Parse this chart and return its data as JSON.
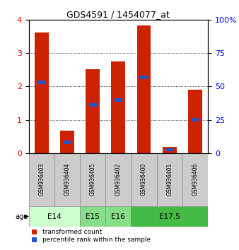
{
  "title": "GDS4591 / 1454077_at",
  "samples": [
    "GSM936403",
    "GSM936404",
    "GSM936405",
    "GSM936402",
    "GSM936400",
    "GSM936401",
    "GSM936406"
  ],
  "red_values": [
    3.62,
    0.68,
    2.52,
    2.75,
    3.84,
    0.18,
    1.9
  ],
  "blue_values": [
    2.12,
    0.32,
    1.45,
    1.6,
    2.28,
    0.1,
    1.0
  ],
  "ylim_left": [
    0,
    4
  ],
  "ylim_right": [
    0,
    100
  ],
  "yticks_left": [
    0,
    1,
    2,
    3,
    4
  ],
  "yticks_right": [
    0,
    25,
    50,
    75,
    100
  ],
  "ytick_labels_right": [
    "0",
    "25",
    "50",
    "75",
    "100%"
  ],
  "age_groups": [
    {
      "label": "E14",
      "cols": [
        0,
        1
      ],
      "color": "#ccffcc"
    },
    {
      "label": "E15",
      "cols": [
        2
      ],
      "color": "#88dd88"
    },
    {
      "label": "E16",
      "cols": [
        3
      ],
      "color": "#88dd88"
    },
    {
      "label": "E17.5",
      "cols": [
        4,
        5,
        6
      ],
      "color": "#44bb44"
    }
  ],
  "red_color": "#cc2200",
  "blue_color": "#2255cc",
  "bg_color": "#ffffff",
  "sample_bg": "#cccccc",
  "legend_red": "transformed count",
  "legend_blue": "percentile rank within the sample"
}
